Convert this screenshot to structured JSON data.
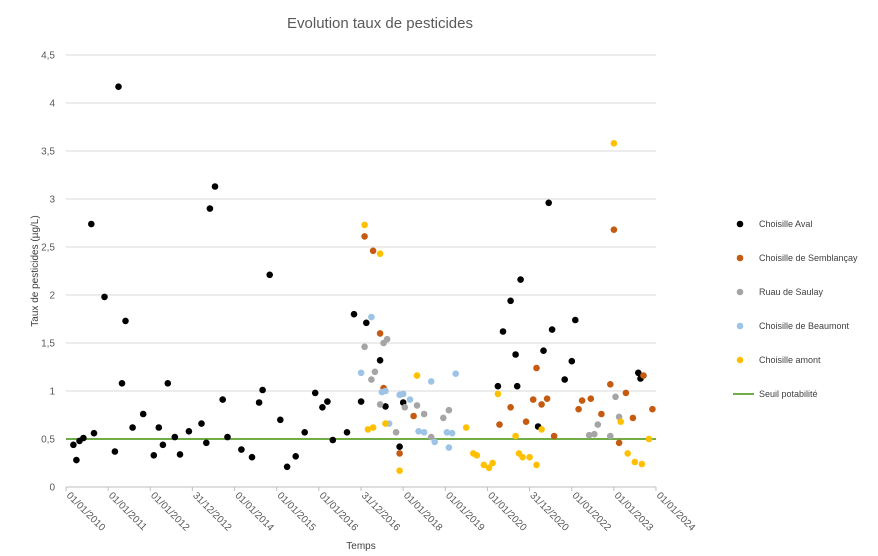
{
  "chart_data": {
    "type": "scatter",
    "title": "Evolution taux de pesticides",
    "xlabel": "Temps",
    "ylabel": "Taux de pesticides (µg/L)",
    "ylim": [
      0,
      4.5
    ],
    "yticks": [
      "0",
      "0,5",
      "1",
      "1,5",
      "2",
      "2,5",
      "3",
      "3,5",
      "4",
      "4,5"
    ],
    "xlim": [
      "2010-01-01",
      "2024-01-01"
    ],
    "xticks": [
      {
        "date": "2010-01-01",
        "label": "01/01/2010"
      },
      {
        "date": "2011-01-01",
        "label": "01/01/2011"
      },
      {
        "date": "2012-01-01",
        "label": "01/01/2012"
      },
      {
        "date": "2012-12-31",
        "label": "31/12/2012"
      },
      {
        "date": "2014-01-01",
        "label": "01/01/2014"
      },
      {
        "date": "2015-01-01",
        "label": "01/01/2015"
      },
      {
        "date": "2016-01-01",
        "label": "01/01/2016"
      },
      {
        "date": "2016-12-31",
        "label": "31/12/2016"
      },
      {
        "date": "2018-01-01",
        "label": "01/01/2018"
      },
      {
        "date": "2019-01-01",
        "label": "01/01/2019"
      },
      {
        "date": "2020-01-01",
        "label": "01/01/2020"
      },
      {
        "date": "2020-12-31",
        "label": "31/12/2020"
      },
      {
        "date": "2022-01-01",
        "label": "01/01/2022"
      },
      {
        "date": "2023-01-01",
        "label": "01/01/2023"
      },
      {
        "date": "2024-01-01",
        "label": "01/01/2024"
      }
    ],
    "grid": "horizontal",
    "legend_position": "right",
    "threshold": {
      "name": "Seuil potabilité",
      "value": 0.5,
      "color": "#70ad47"
    },
    "series": [
      {
        "name": "Choisille Aval",
        "color": "#000000",
        "points": [
          [
            "2010-03-06",
            0.44
          ],
          [
            "2010-04-01",
            0.28
          ],
          [
            "2010-04-28",
            0.48
          ],
          [
            "2010-06-01",
            0.51
          ],
          [
            "2010-08-08",
            2.74
          ],
          [
            "2010-09-01",
            0.56
          ],
          [
            "2010-12-01",
            1.98
          ],
          [
            "2011-03-01",
            0.37
          ],
          [
            "2011-04-01",
            4.17
          ],
          [
            "2011-05-01",
            1.08
          ],
          [
            "2011-06-01",
            1.73
          ],
          [
            "2011-08-01",
            0.62
          ],
          [
            "2011-11-01",
            0.76
          ],
          [
            "2012-02-01",
            0.33
          ],
          [
            "2012-03-15",
            0.62
          ],
          [
            "2012-04-20",
            0.44
          ],
          [
            "2012-06-01",
            1.08
          ],
          [
            "2012-08-01",
            0.52
          ],
          [
            "2012-09-15",
            0.34
          ],
          [
            "2012-12-01",
            0.58
          ],
          [
            "2013-03-20",
            0.66
          ],
          [
            "2013-05-01",
            0.46
          ],
          [
            "2013-06-01",
            2.9
          ],
          [
            "2013-07-15",
            3.13
          ],
          [
            "2013-09-20",
            0.91
          ],
          [
            "2013-11-01",
            0.52
          ],
          [
            "2014-03-01",
            0.39
          ],
          [
            "2014-06-01",
            0.31
          ],
          [
            "2014-08-01",
            0.88
          ],
          [
            "2014-09-01",
            1.01
          ],
          [
            "2014-11-01",
            2.21
          ],
          [
            "2015-02-01",
            0.7
          ],
          [
            "2015-04-01",
            0.21
          ],
          [
            "2015-06-15",
            0.32
          ],
          [
            "2015-09-01",
            0.57
          ],
          [
            "2015-12-01",
            0.98
          ],
          [
            "2016-02-01",
            0.83
          ],
          [
            "2016-03-15",
            0.89
          ],
          [
            "2016-05-01",
            0.49
          ],
          [
            "2016-09-01",
            0.57
          ],
          [
            "2016-11-01",
            1.8
          ],
          [
            "2017-01-01",
            0.89
          ],
          [
            "2017-02-15",
            1.71
          ],
          [
            "2017-06-15",
            1.32
          ],
          [
            "2017-08-01",
            0.84
          ],
          [
            "2017-12-01",
            0.42
          ],
          [
            "2018-01-01",
            0.88
          ],
          [
            "2020-04-01",
            1.05
          ],
          [
            "2020-05-15",
            1.62
          ],
          [
            "2020-07-20",
            1.94
          ],
          [
            "2020-09-01",
            1.38
          ],
          [
            "2020-09-15",
            1.05
          ],
          [
            "2020-10-15",
            2.16
          ],
          [
            "2021-03-15",
            0.63
          ],
          [
            "2021-05-01",
            1.42
          ],
          [
            "2021-06-15",
            2.96
          ],
          [
            "2021-07-15",
            1.64
          ],
          [
            "2021-11-01",
            1.12
          ],
          [
            "2022-01-01",
            1.31
          ],
          [
            "2022-02-01",
            1.74
          ],
          [
            "2023-08-01",
            1.19
          ],
          [
            "2023-08-20",
            1.13
          ]
        ]
      },
      {
        "name": "Choisille de Semblançay",
        "color": "#c55a11",
        "points": [
          [
            "2017-02-01",
            2.61
          ],
          [
            "2017-04-15",
            2.46
          ],
          [
            "2017-06-15",
            1.6
          ],
          [
            "2017-07-15",
            1.03
          ],
          [
            "2017-12-01",
            0.35
          ],
          [
            "2018-04-01",
            0.74
          ],
          [
            "2020-04-15",
            0.65
          ],
          [
            "2020-07-20",
            0.83
          ],
          [
            "2020-12-01",
            0.68
          ],
          [
            "2021-02-01",
            0.91
          ],
          [
            "2021-03-01",
            1.24
          ],
          [
            "2021-04-15",
            0.86
          ],
          [
            "2021-06-01",
            0.92
          ],
          [
            "2021-08-01",
            0.53
          ],
          [
            "2022-03-01",
            0.81
          ],
          [
            "2022-04-01",
            0.9
          ],
          [
            "2022-06-15",
            0.92
          ],
          [
            "2022-09-15",
            0.76
          ],
          [
            "2022-12-01",
            1.07
          ],
          [
            "2023-01-01",
            2.68
          ],
          [
            "2023-02-15",
            0.46
          ],
          [
            "2023-04-15",
            0.98
          ],
          [
            "2023-06-15",
            0.72
          ],
          [
            "2023-09-15",
            1.16
          ],
          [
            "2023-12-01",
            0.81
          ]
        ]
      },
      {
        "name": "Ruau de Saulay",
        "color": "#a5a5a5",
        "points": [
          [
            "2017-02-01",
            1.46
          ],
          [
            "2017-04-01",
            1.12
          ],
          [
            "2017-05-01",
            1.2
          ],
          [
            "2017-06-15",
            0.86
          ],
          [
            "2017-07-15",
            1.5
          ],
          [
            "2017-08-15",
            1.54
          ],
          [
            "2017-11-01",
            0.57
          ],
          [
            "2018-01-15",
            0.83
          ],
          [
            "2018-05-01",
            0.85
          ],
          [
            "2018-07-01",
            0.76
          ],
          [
            "2018-09-01",
            0.52
          ],
          [
            "2018-12-15",
            0.72
          ],
          [
            "2019-02-01",
            0.8
          ],
          [
            "2022-06-01",
            0.54
          ],
          [
            "2022-07-15",
            0.55
          ],
          [
            "2022-08-15",
            0.65
          ],
          [
            "2022-12-01",
            0.53
          ],
          [
            "2023-01-15",
            0.94
          ],
          [
            "2023-02-15",
            0.73
          ]
        ]
      },
      {
        "name": "Choisille de Beaumont",
        "color": "#9dc3e6",
        "points": [
          [
            "2017-01-01",
            1.19
          ],
          [
            "2017-04-01",
            1.77
          ],
          [
            "2017-07-01",
            0.99
          ],
          [
            "2017-08-01",
            1.0
          ],
          [
            "2017-09-01",
            0.66
          ],
          [
            "2017-12-01",
            0.96
          ],
          [
            "2018-01-01",
            0.97
          ],
          [
            "2018-03-01",
            0.91
          ],
          [
            "2018-05-15",
            0.58
          ],
          [
            "2018-07-01",
            0.57
          ],
          [
            "2018-09-01",
            1.1
          ],
          [
            "2018-10-01",
            0.47
          ],
          [
            "2019-01-15",
            0.57
          ],
          [
            "2019-02-01",
            0.41
          ],
          [
            "2019-03-01",
            0.56
          ],
          [
            "2019-04-01",
            1.18
          ]
        ]
      },
      {
        "name": "Choisille amont",
        "color": "#ffc000",
        "points": [
          [
            "2017-02-01",
            2.73
          ],
          [
            "2017-03-01",
            0.6
          ],
          [
            "2017-04-15",
            0.62
          ],
          [
            "2017-06-15",
            2.43
          ],
          [
            "2017-08-01",
            0.66
          ],
          [
            "2017-12-01",
            0.17
          ],
          [
            "2018-05-01",
            1.16
          ],
          [
            "2019-07-01",
            0.62
          ],
          [
            "2019-09-01",
            0.35
          ],
          [
            "2019-10-01",
            0.33
          ],
          [
            "2019-12-01",
            0.23
          ],
          [
            "2020-01-15",
            0.2
          ],
          [
            "2020-02-15",
            0.25
          ],
          [
            "2020-04-01",
            0.97
          ],
          [
            "2020-09-01",
            0.53
          ],
          [
            "2020-10-01",
            0.35
          ],
          [
            "2020-11-01",
            0.31
          ],
          [
            "2021-01-01",
            0.31
          ],
          [
            "2021-03-01",
            0.23
          ],
          [
            "2021-04-15",
            0.6
          ],
          [
            "2023-01-01",
            3.58
          ],
          [
            "2023-03-01",
            0.68
          ],
          [
            "2023-05-01",
            0.35
          ],
          [
            "2023-07-01",
            0.26
          ],
          [
            "2023-09-01",
            0.24
          ],
          [
            "2023-11-01",
            0.5
          ]
        ]
      }
    ]
  }
}
